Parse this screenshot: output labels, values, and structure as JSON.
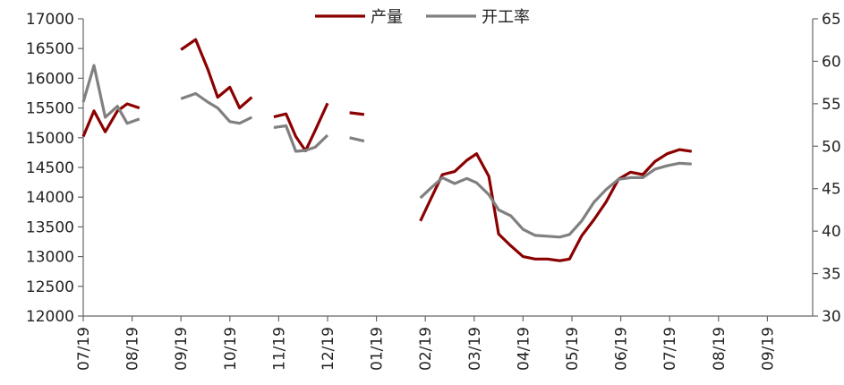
{
  "chart_data": {
    "type": "line",
    "categories": [
      "07/19",
      "08/19",
      "09/19",
      "10/19",
      "11/19",
      "12/19",
      "01/19",
      "02/19",
      "03/19",
      "04/19",
      "05/19",
      "06/19",
      "07/19",
      "08/19",
      "09/19"
    ],
    "y_left": {
      "range": [
        12000,
        17000
      ],
      "ticks": [
        12000,
        12500,
        13000,
        13500,
        14000,
        14500,
        15000,
        15500,
        16000,
        16500,
        17000
      ]
    },
    "y_right": {
      "range": [
        30,
        65
      ],
      "ticks": [
        30,
        35,
        40,
        45,
        50,
        55,
        60,
        65
      ]
    },
    "legend_position": "top",
    "grid": false,
    "series": [
      {
        "name": "产量",
        "axis": "left",
        "color": "#8b0000",
        "segments": [
          [
            [
              0.0,
              15020
            ],
            [
              0.22,
              15450
            ],
            [
              0.45,
              15100
            ],
            [
              0.7,
              15450
            ],
            [
              0.9,
              15570
            ],
            [
              1.15,
              15500
            ]
          ],
          [
            [
              2.0,
              16480
            ],
            [
              2.3,
              16650
            ],
            [
              2.55,
              16150
            ],
            [
              2.75,
              15680
            ],
            [
              3.0,
              15850
            ],
            [
              3.2,
              15500
            ],
            [
              3.45,
              15680
            ]
          ],
          [
            [
              3.9,
              15350
            ],
            [
              4.15,
              15400
            ],
            [
              4.35,
              15020
            ],
            [
              4.55,
              14780
            ],
            [
              4.75,
              15130
            ],
            [
              5.0,
              15580
            ]
          ],
          [
            [
              5.45,
              15420
            ],
            [
              5.75,
              15390
            ]
          ],
          [
            [
              6.9,
              13600
            ],
            [
              7.1,
              13950
            ],
            [
              7.35,
              14380
            ],
            [
              7.6,
              14430
            ],
            [
              7.85,
              14620
            ],
            [
              8.05,
              14730
            ],
            [
              8.3,
              14350
            ],
            [
              8.5,
              13380
            ],
            [
              8.75,
              13180
            ],
            [
              9.0,
              13000
            ],
            [
              9.25,
              12960
            ],
            [
              9.5,
              12960
            ],
            [
              9.75,
              12930
            ],
            [
              9.95,
              12960
            ],
            [
              10.2,
              13350
            ],
            [
              10.45,
              13620
            ],
            [
              10.7,
              13920
            ],
            [
              10.95,
              14300
            ],
            [
              11.2,
              14420
            ],
            [
              11.45,
              14380
            ],
            [
              11.7,
              14600
            ],
            [
              11.95,
              14730
            ],
            [
              12.2,
              14800
            ],
            [
              12.45,
              14770
            ]
          ]
        ]
      },
      {
        "name": "开工率",
        "axis": "right",
        "color": "#808080",
        "segments": [
          [
            [
              0.0,
              55.2
            ],
            [
              0.22,
              59.5
            ],
            [
              0.45,
              53.4
            ],
            [
              0.7,
              54.7
            ],
            [
              0.9,
              52.7
            ],
            [
              1.15,
              53.2
            ]
          ],
          [
            [
              2.0,
              55.6
            ],
            [
              2.3,
              56.2
            ],
            [
              2.55,
              55.2
            ],
            [
              2.75,
              54.5
            ],
            [
              3.0,
              52.9
            ],
            [
              3.2,
              52.7
            ],
            [
              3.45,
              53.4
            ]
          ],
          [
            [
              3.9,
              52.2
            ],
            [
              4.15,
              52.4
            ],
            [
              4.35,
              49.4
            ],
            [
              4.55,
              49.5
            ],
            [
              4.75,
              49.9
            ],
            [
              5.0,
              51.3
            ]
          ],
          [
            [
              5.45,
              51.0
            ],
            [
              5.75,
              50.6
            ]
          ],
          [
            [
              6.9,
              43.9
            ],
            [
              7.1,
              45.0
            ],
            [
              7.35,
              46.3
            ],
            [
              7.6,
              45.6
            ],
            [
              7.85,
              46.2
            ],
            [
              8.05,
              45.7
            ],
            [
              8.3,
              44.3
            ],
            [
              8.5,
              42.5
            ],
            [
              8.75,
              41.8
            ],
            [
              9.0,
              40.2
            ],
            [
              9.25,
              39.5
            ],
            [
              9.5,
              39.4
            ],
            [
              9.75,
              39.3
            ],
            [
              9.95,
              39.6
            ],
            [
              10.2,
              41.2
            ],
            [
              10.45,
              43.4
            ],
            [
              10.7,
              44.9
            ],
            [
              10.95,
              46.1
            ],
            [
              11.2,
              46.3
            ],
            [
              11.45,
              46.3
            ],
            [
              11.7,
              47.3
            ],
            [
              11.95,
              47.7
            ],
            [
              12.2,
              48.0
            ],
            [
              12.45,
              47.9
            ]
          ]
        ]
      }
    ]
  }
}
